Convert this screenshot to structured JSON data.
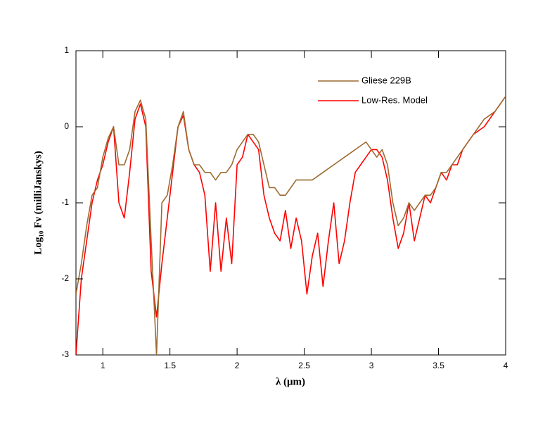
{
  "chart_data": {
    "type": "line",
    "xlabel": "λ (μm)",
    "ylabel": "Log₁₀ Fν (milliJanskys)",
    "x": [
      0.8,
      0.84,
      0.88,
      0.92,
      0.96,
      1.0,
      1.04,
      1.08,
      1.12,
      1.16,
      1.2,
      1.24,
      1.28,
      1.32,
      1.36,
      1.4,
      1.44,
      1.48,
      1.52,
      1.56,
      1.6,
      1.64,
      1.68,
      1.72,
      1.76,
      1.8,
      1.84,
      1.88,
      1.92,
      1.96,
      2.0,
      2.04,
      2.08,
      2.12,
      2.16,
      2.2,
      2.24,
      2.28,
      2.32,
      2.36,
      2.4,
      2.44,
      2.48,
      2.52,
      2.56,
      2.6,
      2.64,
      2.68,
      2.72,
      2.76,
      2.8,
      2.84,
      2.88,
      2.92,
      2.96,
      3.0,
      3.04,
      3.08,
      3.12,
      3.16,
      3.2,
      3.24,
      3.28,
      3.32,
      3.36,
      3.4,
      3.44,
      3.48,
      3.52,
      3.56,
      3.6,
      3.64,
      3.68,
      3.72,
      3.76,
      3.8,
      3.84,
      3.88,
      3.92,
      3.96,
      4.0
    ],
    "series": [
      {
        "name": "Gliese 229B",
        "color": "#9c6b30",
        "values": [
          -2.2,
          -1.8,
          -1.3,
          -0.9,
          -0.8,
          -0.4,
          -0.15,
          0.0,
          -0.5,
          -0.5,
          -0.3,
          0.2,
          0.35,
          0.1,
          -1.5,
          -3.0,
          -1.0,
          -0.9,
          -0.5,
          0.0,
          0.2,
          -0.3,
          -0.5,
          -0.5,
          -0.6,
          -0.6,
          -0.7,
          -0.6,
          -0.6,
          -0.5,
          -0.3,
          -0.2,
          -0.1,
          -0.1,
          -0.2,
          -0.5,
          -0.8,
          -0.8,
          -0.9,
          -0.9,
          -0.8,
          -0.7,
          -0.7,
          -0.7,
          -0.7,
          -0.65,
          -0.6,
          -0.55,
          -0.5,
          -0.45,
          -0.4,
          -0.35,
          -0.3,
          -0.25,
          -0.2,
          -0.3,
          -0.4,
          -0.3,
          -0.5,
          -1.0,
          -1.3,
          -1.2,
          -1.0,
          -1.1,
          -1.0,
          -0.9,
          -0.9,
          -0.8,
          -0.6,
          -0.6,
          -0.5,
          -0.4,
          -0.3,
          -0.2,
          -0.1,
          0.0,
          0.1,
          0.15,
          0.2,
          0.3,
          0.4
        ]
      },
      {
        "name": "Low-Res. Model",
        "color": "#ff0000",
        "values": [
          -3.0,
          -2.0,
          -1.5,
          -1.0,
          -0.7,
          -0.5,
          -0.2,
          0.0,
          -1.0,
          -1.2,
          -0.6,
          0.1,
          0.3,
          0.0,
          -1.9,
          -2.5,
          -1.8,
          -1.2,
          -0.6,
          0.0,
          0.15,
          -0.3,
          -0.5,
          -0.6,
          -0.9,
          -1.9,
          -1.0,
          -1.9,
          -1.2,
          -1.8,
          -0.5,
          -0.4,
          -0.1,
          -0.2,
          -0.3,
          -0.9,
          -1.2,
          -1.4,
          -1.5,
          -1.1,
          -1.6,
          -1.2,
          -1.5,
          -2.2,
          -1.7,
          -1.4,
          -2.1,
          -1.5,
          -1.0,
          -1.8,
          -1.5,
          -1.0,
          -0.6,
          -0.5,
          -0.4,
          -0.3,
          -0.3,
          -0.4,
          -0.7,
          -1.2,
          -1.6,
          -1.4,
          -1.0,
          -1.5,
          -1.2,
          -0.9,
          -1.0,
          -0.8,
          -0.6,
          -0.7,
          -0.5,
          -0.5,
          -0.3,
          -0.2,
          -0.1,
          -0.05,
          0.0,
          0.1,
          0.2,
          0.3,
          0.4
        ]
      }
    ],
    "xlim": [
      0.8,
      4
    ],
    "xticks": [
      1,
      1.5,
      2,
      2.5,
      3,
      3.5,
      4
    ],
    "ylim": [
      -3,
      1
    ],
    "yticks": [
      -3,
      -2,
      -1,
      0,
      1
    ],
    "legend": "upper right"
  }
}
